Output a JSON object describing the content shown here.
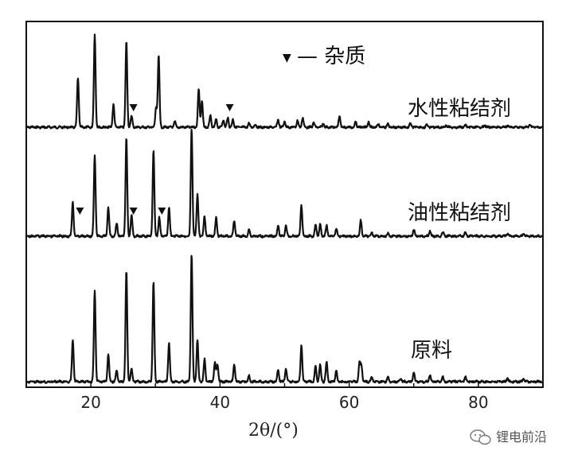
{
  "chart_data": {
    "type": "line",
    "title": "",
    "xlabel": "2θ/(°)",
    "ylabel": "",
    "xlim": [
      10,
      90
    ],
    "x_ticks": [
      20,
      40,
      60,
      80
    ],
    "grid": false,
    "legend": {
      "text": "— 杂质",
      "marker": "▼",
      "placement": "top-right"
    },
    "series": [
      {
        "name": "水性粘结剂",
        "peaks": [
          [
            18.0,
            0.52
          ],
          [
            20.6,
            0.98
          ],
          [
            23.5,
            0.24
          ],
          [
            25.5,
            0.9
          ],
          [
            26.3,
            0.12
          ],
          [
            30.5,
            0.75
          ],
          [
            30.1,
            0.2
          ],
          [
            33.0,
            0.06
          ],
          [
            36.7,
            0.4
          ],
          [
            37.2,
            0.28
          ],
          [
            38.5,
            0.12
          ],
          [
            39.4,
            0.08
          ],
          [
            40.5,
            0.08
          ],
          [
            41.2,
            0.1
          ],
          [
            42.0,
            0.08
          ],
          [
            44.5,
            0.04
          ],
          [
            45.5,
            0.03
          ],
          [
            49.0,
            0.08
          ],
          [
            50.0,
            0.06
          ],
          [
            52.0,
            0.07
          ],
          [
            52.8,
            0.1
          ],
          [
            54.5,
            0.05
          ],
          [
            56.0,
            0.04
          ],
          [
            58.5,
            0.12
          ],
          [
            61.0,
            0.06
          ],
          [
            63.0,
            0.06
          ],
          [
            64.5,
            0.04
          ],
          [
            66.0,
            0.03
          ],
          [
            69.5,
            0.04
          ],
          [
            72.0,
            0.03
          ],
          [
            75.0,
            0.02
          ],
          [
            78.0,
            0.02
          ],
          [
            81.0,
            0.02
          ],
          [
            84.5,
            0.02
          ],
          [
            88.0,
            0.03
          ]
        ],
        "impurity_peaks": [
          26.6,
          41.5
        ]
      },
      {
        "name": "油性粘结剂",
        "peaks": [
          [
            17.2,
            0.26
          ],
          [
            20.6,
            0.62
          ],
          [
            22.7,
            0.22
          ],
          [
            24.0,
            0.1
          ],
          [
            25.5,
            0.75
          ],
          [
            26.3,
            0.16
          ],
          [
            29.7,
            0.66
          ],
          [
            30.6,
            0.14
          ],
          [
            32.1,
            0.22
          ],
          [
            35.6,
            0.82
          ],
          [
            36.5,
            0.32
          ],
          [
            37.6,
            0.15
          ],
          [
            39.4,
            0.14
          ],
          [
            42.2,
            0.12
          ],
          [
            44.5,
            0.05
          ],
          [
            49.0,
            0.08
          ],
          [
            50.2,
            0.08
          ],
          [
            52.6,
            0.24
          ],
          [
            54.8,
            0.09
          ],
          [
            55.5,
            0.09
          ],
          [
            56.5,
            0.08
          ],
          [
            58.0,
            0.06
          ],
          [
            61.8,
            0.12
          ],
          [
            63.5,
            0.03
          ],
          [
            66.0,
            0.02
          ],
          [
            70.0,
            0.05
          ],
          [
            72.5,
            0.04
          ],
          [
            74.5,
            0.03
          ],
          [
            78.0,
            0.03
          ],
          [
            84.5,
            0.02
          ],
          [
            87.0,
            0.02
          ]
        ],
        "impurity_peaks": [
          18.3,
          26.6,
          31.0
        ]
      },
      {
        "name": "原料",
        "peaks": [
          [
            17.2,
            0.38
          ],
          [
            20.6,
            0.82
          ],
          [
            22.7,
            0.25
          ],
          [
            24.0,
            0.1
          ],
          [
            25.5,
            1.0
          ],
          [
            26.3,
            0.12
          ],
          [
            29.7,
            0.9
          ],
          [
            32.1,
            0.35
          ],
          [
            35.6,
            1.15
          ],
          [
            36.5,
            0.38
          ],
          [
            37.6,
            0.2
          ],
          [
            39.2,
            0.17
          ],
          [
            39.6,
            0.16
          ],
          [
            42.2,
            0.16
          ],
          [
            44.5,
            0.05
          ],
          [
            49.0,
            0.11
          ],
          [
            50.2,
            0.12
          ],
          [
            52.6,
            0.33
          ],
          [
            54.8,
            0.14
          ],
          [
            55.5,
            0.15
          ],
          [
            56.5,
            0.18
          ],
          [
            58.0,
            0.1
          ],
          [
            61.6,
            0.17
          ],
          [
            61.9,
            0.14
          ],
          [
            63.5,
            0.04
          ],
          [
            66.0,
            0.04
          ],
          [
            68.0,
            0.03
          ],
          [
            70.0,
            0.08
          ],
          [
            72.5,
            0.06
          ],
          [
            74.5,
            0.04
          ],
          [
            78.0,
            0.04
          ],
          [
            84.5,
            0.03
          ],
          [
            87.0,
            0.03
          ]
        ],
        "impurity_peaks": []
      }
    ]
  },
  "legend_text": "— 杂质",
  "legend_marker": "▼",
  "watermark": "锂电前沿"
}
